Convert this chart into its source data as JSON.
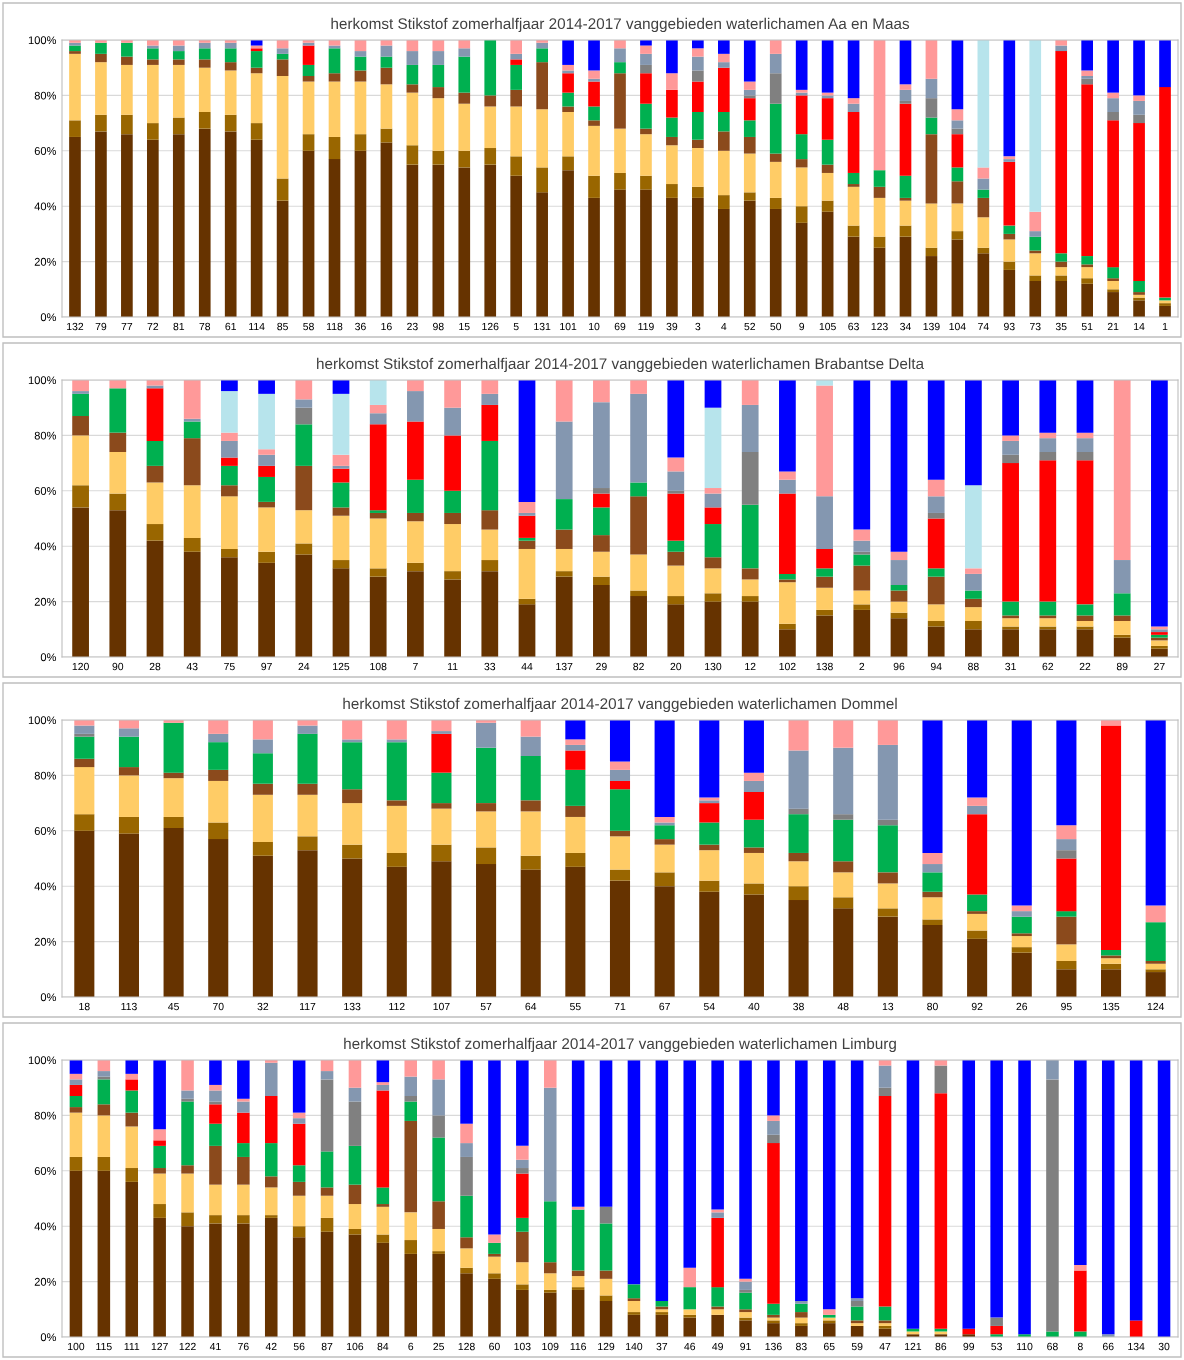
{
  "chart_data": [
    {
      "type": "bar",
      "stacked": true,
      "grid": "y",
      "title": "herkomst Stikstof zomerhalfjaar 2014-2017 vanggebieden waterlichamen Aa en Maas",
      "categories": [
        "132",
        "79",
        "77",
        "72",
        "81",
        "78",
        "61",
        "114",
        "85",
        "58",
        "118",
        "36",
        "16",
        "23",
        "98",
        "15",
        "126",
        "5",
        "131",
        "101",
        "10",
        "69",
        "119",
        "39",
        "3",
        "4",
        "52",
        "50",
        "9",
        "105",
        "63",
        "123",
        "34",
        "139",
        "104",
        "74",
        "93",
        "73",
        "35",
        "51",
        "21",
        "14",
        "1"
      ],
      "ylim": [
        0,
        100
      ],
      "yticks": [
        {
          "value": 0,
          "label": "0%"
        },
        {
          "value": 20,
          "label": "20%"
        },
        {
          "value": 40,
          "label": "40%"
        },
        {
          "value": 60,
          "label": "60%"
        },
        {
          "value": 80,
          "label": "80%"
        },
        {
          "value": 100,
          "label": "100%"
        }
      ],
      "series": [
        {
          "color": "#663300",
          "values": [
            65,
            67,
            66,
            64,
            66,
            68,
            67,
            64,
            42,
            60,
            57,
            60,
            63,
            55,
            55,
            54,
            55,
            51,
            45,
            53,
            43,
            46,
            46,
            43,
            43,
            39,
            42,
            39,
            34,
            38,
            29,
            25,
            29,
            22,
            28,
            23,
            17,
            13,
            13,
            12,
            9,
            6,
            4
          ]
        },
        {
          "color": "#996600",
          "values": [
            6,
            6,
            7,
            6,
            6,
            6,
            6,
            6,
            8,
            6,
            8,
            6,
            5,
            7,
            5,
            6,
            6,
            7,
            9,
            5,
            8,
            6,
            5,
            5,
            4,
            5,
            3,
            4,
            6,
            4,
            4,
            4,
            4,
            3,
            3,
            2,
            3,
            2,
            2,
            2,
            1,
            1,
            1
          ]
        },
        {
          "color": "#ffcc66",
          "values": [
            24,
            19,
            18,
            21,
            19,
            16,
            16,
            18,
            37,
            19,
            20,
            19,
            16,
            19,
            19,
            17,
            15,
            18,
            21,
            16,
            18,
            16,
            15,
            14,
            14,
            16,
            14,
            13,
            14,
            10,
            14,
            14,
            9,
            16,
            10,
            11,
            8,
            8,
            3,
            4,
            3,
            1,
            1
          ]
        },
        {
          "color": "#8b4a1c",
          "values": [
            1,
            3,
            3,
            2,
            2,
            3,
            3,
            2,
            6,
            2,
            3,
            4,
            6,
            3,
            4,
            4,
            4,
            6,
            17,
            2,
            2,
            20,
            2,
            3,
            3,
            7,
            6,
            3,
            3,
            3,
            1,
            4,
            1,
            25,
            8,
            7,
            2,
            1,
            2,
            1,
            1,
            1,
            0
          ]
        },
        {
          "color": "#00b050",
          "values": [
            2,
            4,
            5,
            4,
            3,
            4,
            5,
            6,
            2,
            4,
            9,
            5,
            4,
            7,
            8,
            13,
            20,
            9,
            5,
            5,
            5,
            4,
            9,
            7,
            10,
            7,
            6,
            18,
            9,
            9,
            4,
            6,
            8,
            6,
            5,
            3,
            3,
            5,
            3,
            3,
            4,
            4,
            1
          ]
        },
        {
          "color": "#ff0000",
          "values": [
            0,
            0,
            0,
            0,
            0,
            0,
            0,
            1,
            0,
            7,
            0,
            0,
            0,
            0,
            0,
            0,
            0,
            2,
            0,
            7,
            9,
            0,
            11,
            10,
            11,
            16,
            8,
            0,
            14,
            15,
            22,
            0,
            26,
            0,
            12,
            0,
            23,
            0,
            73,
            62,
            53,
            57,
            76
          ]
        },
        {
          "color": "#808080",
          "values": [
            0,
            0,
            0,
            0,
            0,
            0,
            0,
            0,
            0,
            0,
            0,
            0,
            0,
            0,
            0,
            0,
            0,
            0,
            0,
            0,
            0,
            0,
            3,
            0,
            4,
            0,
            1,
            11,
            0,
            0,
            0,
            0,
            1,
            7,
            2,
            0,
            0,
            0,
            0,
            2,
            3,
            3,
            0
          ]
        },
        {
          "color": "#8497b0",
          "values": [
            1,
            0,
            0,
            1,
            2,
            2,
            2,
            0,
            2,
            1,
            1,
            2,
            4,
            5,
            5,
            3,
            0,
            2,
            2,
            1,
            1,
            5,
            4,
            0,
            5,
            2,
            2,
            7,
            1,
            1,
            3,
            0,
            4,
            7,
            3,
            4,
            1,
            2,
            2,
            1,
            5,
            5,
            0
          ]
        },
        {
          "color": "#ff9999",
          "values": [
            1,
            1,
            1,
            2,
            2,
            1,
            1,
            1,
            3,
            1,
            2,
            4,
            2,
            4,
            4,
            3,
            0,
            5,
            1,
            2,
            3,
            3,
            3,
            6,
            3,
            3,
            3,
            5,
            1,
            1,
            2,
            47,
            2,
            14,
            4,
            4,
            1,
            7,
            2,
            2,
            2,
            2,
            0
          ]
        },
        {
          "color": "#b7e4ec",
          "values": [
            0,
            0,
            0,
            0,
            0,
            0,
            0,
            0,
            0,
            0,
            0,
            0,
            0,
            0,
            0,
            0,
            0,
            0,
            0,
            0,
            0,
            0,
            0,
            0,
            0,
            0,
            0,
            0,
            0,
            0,
            0,
            0,
            0,
            0,
            0,
            46,
            0,
            62,
            0,
            0,
            0,
            0,
            0
          ]
        },
        {
          "color": "#0000ff",
          "values": [
            0,
            0,
            0,
            0,
            0,
            0,
            0,
            2,
            0,
            0,
            0,
            0,
            0,
            0,
            0,
            0,
            0,
            0,
            0,
            9,
            11,
            0,
            2,
            12,
            3,
            5,
            15,
            0,
            18,
            19,
            21,
            0,
            16,
            0,
            25,
            0,
            42,
            0,
            0,
            11,
            19,
            20,
            17
          ]
        }
      ]
    },
    {
      "type": "bar",
      "stacked": true,
      "grid": "y",
      "title": "herkomst Stikstof zomerhalfjaar 2014-2017 vanggebieden waterlichamen Brabantse Delta",
      "categories": [
        "120",
        "90",
        "28",
        "43",
        "75",
        "97",
        "24",
        "125",
        "108",
        "7",
        "11",
        "33",
        "44",
        "137",
        "29",
        "82",
        "20",
        "130",
        "12",
        "102",
        "138",
        "2",
        "96",
        "94",
        "88",
        "31",
        "62",
        "22",
        "89",
        "27"
      ],
      "ylim": [
        0,
        100
      ],
      "yticks": [
        {
          "value": 0,
          "label": "0%"
        },
        {
          "value": 20,
          "label": "20%"
        },
        {
          "value": 40,
          "label": "40%"
        },
        {
          "value": 60,
          "label": "60%"
        },
        {
          "value": 80,
          "label": "80%"
        },
        {
          "value": 100,
          "label": "100%"
        }
      ],
      "series": [
        {
          "color": "#663300",
          "values": [
            54,
            53,
            42,
            38,
            36,
            34,
            37,
            32,
            29,
            31,
            28,
            31,
            19,
            29,
            26,
            22,
            19,
            20,
            20,
            10,
            15,
            17,
            14,
            11,
            10,
            10,
            10,
            10,
            7,
            3
          ]
        },
        {
          "color": "#996600",
          "values": [
            8,
            6,
            6,
            5,
            3,
            4,
            4,
            3,
            3,
            3,
            3,
            4,
            2,
            2,
            3,
            2,
            3,
            3,
            2,
            2,
            2,
            2,
            2,
            2,
            3,
            1,
            1,
            1,
            1,
            1
          ]
        },
        {
          "color": "#ffcc66",
          "values": [
            18,
            15,
            15,
            19,
            19,
            16,
            12,
            16,
            18,
            15,
            17,
            11,
            18,
            8,
            9,
            13,
            11,
            9,
            6,
            15,
            8,
            5,
            4,
            6,
            5,
            3,
            3,
            2,
            5,
            2
          ]
        },
        {
          "color": "#8b4a1c",
          "values": [
            7,
            7,
            6,
            17,
            4,
            2,
            16,
            3,
            2,
            3,
            4,
            7,
            3,
            7,
            6,
            21,
            5,
            4,
            4,
            1,
            4,
            9,
            4,
            10,
            3,
            1,
            1,
            2,
            2,
            1
          ]
        },
        {
          "color": "#00b050",
          "values": [
            8,
            16,
            9,
            6,
            7,
            9,
            15,
            9,
            1,
            12,
            8,
            25,
            1,
            11,
            10,
            5,
            4,
            12,
            23,
            2,
            3,
            4,
            2,
            3,
            3,
            5,
            5,
            4,
            8,
            1
          ]
        },
        {
          "color": "#ff0000",
          "values": [
            0,
            0,
            19,
            0,
            3,
            4,
            0,
            5,
            31,
            21,
            20,
            13,
            8,
            0,
            5,
            0,
            17,
            6,
            0,
            29,
            7,
            0,
            0,
            18,
            0,
            50,
            51,
            52,
            0,
            1
          ]
        },
        {
          "color": "#808080",
          "values": [
            0,
            0,
            0,
            0,
            0,
            0,
            6,
            0,
            0,
            0,
            0,
            0,
            0,
            0,
            2,
            0,
            1,
            0,
            19,
            0,
            0,
            1,
            0,
            2,
            0,
            3,
            3,
            3,
            0,
            0
          ]
        },
        {
          "color": "#8497b0",
          "values": [
            1,
            0,
            1,
            1,
            6,
            4,
            3,
            1,
            4,
            11,
            10,
            4,
            1,
            28,
            31,
            32,
            7,
            5,
            17,
            5,
            19,
            4,
            9,
            6,
            6,
            5,
            5,
            5,
            12,
            1
          ]
        },
        {
          "color": "#ff9999",
          "values": [
            4,
            3,
            2,
            14,
            3,
            2,
            7,
            4,
            3,
            4,
            10,
            5,
            4,
            15,
            8,
            5,
            5,
            2,
            9,
            3,
            40,
            4,
            3,
            6,
            2,
            2,
            2,
            2,
            65,
            1
          ]
        },
        {
          "color": "#b7e4ec",
          "values": [
            0,
            0,
            0,
            0,
            15,
            20,
            0,
            22,
            9,
            0,
            0,
            0,
            0,
            0,
            0,
            0,
            0,
            29,
            0,
            0,
            2,
            0,
            0,
            0,
            30,
            0,
            0,
            0,
            0,
            0
          ]
        },
        {
          "color": "#0000ff",
          "values": [
            0,
            0,
            0,
            0,
            4,
            5,
            0,
            5,
            0,
            0,
            0,
            0,
            44,
            0,
            0,
            0,
            28,
            10,
            0,
            33,
            0,
            54,
            62,
            36,
            38,
            20,
            19,
            19,
            0,
            89
          ]
        }
      ]
    },
    {
      "type": "bar",
      "stacked": true,
      "grid": "y",
      "title": "herkomst Stikstof zomerhalfjaar 2014-2017 vanggebieden waterlichamen Dommel",
      "categories": [
        "18",
        "113",
        "45",
        "70",
        "32",
        "117",
        "133",
        "112",
        "107",
        "57",
        "64",
        "55",
        "71",
        "67",
        "54",
        "40",
        "38",
        "48",
        "13",
        "80",
        "92",
        "26",
        "95",
        "135",
        "124"
      ],
      "ylim": [
        0,
        100
      ],
      "yticks": [
        {
          "value": 0,
          "label": "0%"
        },
        {
          "value": 20,
          "label": "20%"
        },
        {
          "value": 40,
          "label": "40%"
        },
        {
          "value": 60,
          "label": "60%"
        },
        {
          "value": 80,
          "label": "80%"
        },
        {
          "value": 100,
          "label": "100%"
        }
      ],
      "series": [
        {
          "color": "#663300",
          "values": [
            60,
            59,
            61,
            57,
            51,
            53,
            50,
            47,
            49,
            48,
            46,
            47,
            42,
            40,
            38,
            37,
            35,
            32,
            29,
            26,
            21,
            16,
            10,
            10,
            9
          ]
        },
        {
          "color": "#996600",
          "values": [
            6,
            6,
            4,
            6,
            5,
            5,
            5,
            5,
            6,
            6,
            5,
            5,
            4,
            5,
            4,
            4,
            5,
            4,
            3,
            2,
            3,
            2,
            3,
            2,
            1
          ]
        },
        {
          "color": "#ffcc66",
          "values": [
            17,
            15,
            14,
            15,
            17,
            15,
            15,
            17,
            13,
            13,
            16,
            13,
            12,
            10,
            11,
            11,
            9,
            9,
            9,
            8,
            6,
            4,
            6,
            2,
            2
          ]
        },
        {
          "color": "#8b4a1c",
          "values": [
            3,
            3,
            2,
            4,
            4,
            4,
            5,
            2,
            2,
            3,
            4,
            4,
            2,
            2,
            2,
            2,
            3,
            4,
            4,
            2,
            1,
            1,
            10,
            1,
            1
          ]
        },
        {
          "color": "#00b050",
          "values": [
            8,
            11,
            18,
            10,
            11,
            18,
            17,
            21,
            11,
            20,
            16,
            13,
            15,
            5,
            8,
            10,
            14,
            15,
            17,
            7,
            6,
            6,
            2,
            2,
            14
          ]
        },
        {
          "color": "#ff0000",
          "values": [
            0,
            0,
            0,
            0,
            0,
            0,
            0,
            0,
            14,
            0,
            0,
            7,
            3,
            0,
            7,
            10,
            0,
            0,
            0,
            0,
            29,
            0,
            19,
            81,
            0
          ]
        },
        {
          "color": "#808080",
          "values": [
            1,
            0,
            0,
            0,
            0,
            0,
            0,
            0,
            0,
            0,
            0,
            0,
            0,
            0,
            0,
            0,
            2,
            2,
            2,
            0,
            0,
            0,
            3,
            0,
            0
          ]
        },
        {
          "color": "#8497b0",
          "values": [
            3,
            3,
            0,
            3,
            5,
            3,
            1,
            1,
            1,
            9,
            7,
            2,
            4,
            1,
            1,
            4,
            21,
            24,
            27,
            3,
            3,
            2,
            4,
            0,
            0
          ]
        },
        {
          "color": "#ff9999",
          "values": [
            2,
            3,
            1,
            5,
            7,
            2,
            7,
            7,
            4,
            1,
            6,
            2,
            3,
            2,
            1,
            3,
            11,
            10,
            9,
            4,
            3,
            2,
            5,
            2,
            6
          ]
        },
        {
          "color": "#0000ff",
          "values": [
            0,
            0,
            0,
            0,
            0,
            0,
            0,
            0,
            0,
            0,
            0,
            7,
            15,
            35,
            28,
            19,
            0,
            0,
            0,
            48,
            28,
            67,
            38,
            0,
            67
          ]
        }
      ]
    },
    {
      "type": "bar",
      "stacked": true,
      "grid": "y",
      "title": "herkomst Stikstof zomerhalfjaar 2014-2017 vanggebieden waterlichamen Limburg",
      "categories": [
        "100",
        "115",
        "111",
        "127",
        "122",
        "41",
        "76",
        "42",
        "56",
        "87",
        "106",
        "84",
        "6",
        "25",
        "128",
        "60",
        "103",
        "109",
        "116",
        "129",
        "140",
        "37",
        "46",
        "49",
        "91",
        "136",
        "83",
        "65",
        "59",
        "47",
        "121",
        "86",
        "99",
        "53",
        "110",
        "68",
        "8",
        "66",
        "134",
        "30"
      ],
      "ylim": [
        0,
        100
      ],
      "yticks": [
        {
          "value": 0,
          "label": "0%"
        },
        {
          "value": 20,
          "label": "20%"
        },
        {
          "value": 40,
          "label": "40%"
        },
        {
          "value": 60,
          "label": "60%"
        },
        {
          "value": 80,
          "label": "80%"
        },
        {
          "value": 100,
          "label": "100%"
        }
      ],
      "series": [
        {
          "color": "#663300",
          "values": [
            60,
            60,
            56,
            43,
            40,
            41,
            41,
            43,
            36,
            38,
            37,
            34,
            30,
            30,
            23,
            21,
            17,
            16,
            17,
            13,
            8,
            8,
            7,
            8,
            6,
            5,
            4,
            5,
            4,
            3,
            1,
            1,
            1,
            0,
            0,
            0,
            0,
            0,
            0,
            0
          ]
        },
        {
          "color": "#996600",
          "values": [
            5,
            5,
            5,
            5,
            5,
            3,
            3,
            1,
            4,
            5,
            2,
            3,
            5,
            1,
            2,
            2,
            2,
            1,
            1,
            2,
            1,
            1,
            1,
            0,
            1,
            1,
            1,
            1,
            0,
            1,
            0,
            0,
            0,
            0,
            0,
            0,
            0,
            0,
            0,
            0
          ]
        },
        {
          "color": "#ffcc66",
          "values": [
            16,
            15,
            15,
            11,
            14,
            11,
            11,
            10,
            11,
            8,
            9,
            10,
            10,
            8,
            7,
            6,
            8,
            6,
            4,
            6,
            4,
            1,
            2,
            2,
            2,
            1,
            2,
            1,
            1,
            1,
            1,
            1,
            0,
            0,
            0,
            0,
            0,
            0,
            0,
            0
          ]
        },
        {
          "color": "#8b4a1c",
          "values": [
            2,
            4,
            5,
            2,
            3,
            14,
            10,
            4,
            5,
            3,
            7,
            1,
            33,
            10,
            4,
            1,
            11,
            4,
            2,
            3,
            1,
            1,
            0,
            1,
            1,
            1,
            2,
            0,
            1,
            1,
            0,
            0,
            0,
            0,
            0,
            0,
            0,
            0,
            0,
            0
          ]
        },
        {
          "color": "#00b050",
          "values": [
            4,
            9,
            8,
            8,
            23,
            8,
            5,
            12,
            6,
            13,
            14,
            6,
            7,
            23,
            15,
            4,
            5,
            22,
            22,
            17,
            5,
            2,
            8,
            7,
            6,
            4,
            3,
            1,
            5,
            5,
            1,
            1,
            0,
            1,
            1,
            2,
            2,
            0,
            0,
            0
          ]
        },
        {
          "color": "#ff0000",
          "values": [
            4,
            0,
            4,
            2,
            0,
            7,
            11,
            17,
            15,
            0,
            0,
            35,
            0,
            0,
            0,
            0,
            16,
            0,
            0,
            0,
            0,
            0,
            0,
            25,
            0,
            58,
            0,
            0,
            0,
            76,
            0,
            85,
            2,
            3,
            0,
            0,
            22,
            0,
            6,
            0
          ]
        },
        {
          "color": "#808080",
          "values": [
            0,
            1,
            0,
            0,
            1,
            1,
            0,
            0,
            0,
            26,
            16,
            0,
            2,
            8,
            14,
            0,
            2,
            0,
            0,
            6,
            0,
            0,
            0,
            0,
            1,
            3,
            0,
            0,
            2,
            3,
            0,
            10,
            0,
            3,
            0,
            91,
            0,
            0,
            0,
            0
          ]
        },
        {
          "color": "#8497b0",
          "values": [
            2,
            2,
            0,
            0,
            3,
            4,
            4,
            12,
            2,
            3,
            5,
            2,
            7,
            13,
            5,
            0,
            3,
            41,
            0,
            0,
            0,
            0,
            0,
            2,
            3,
            5,
            1,
            0,
            1,
            8,
            0,
            0,
            0,
            0,
            0,
            7,
            0,
            1,
            0,
            0
          ]
        },
        {
          "color": "#ff9999",
          "values": [
            2,
            4,
            2,
            4,
            11,
            2,
            1,
            1,
            2,
            4,
            10,
            1,
            6,
            7,
            7,
            3,
            5,
            10,
            1,
            0,
            0,
            0,
            7,
            1,
            1,
            2,
            0,
            2,
            0,
            2,
            0,
            2,
            0,
            0,
            0,
            0,
            2,
            0,
            0,
            0
          ]
        },
        {
          "color": "#0000ff",
          "values": [
            5,
            0,
            5,
            25,
            0,
            9,
            14,
            0,
            19,
            0,
            0,
            8,
            0,
            0,
            23,
            63,
            31,
            0,
            53,
            53,
            81,
            87,
            75,
            54,
            79,
            20,
            87,
            90,
            86,
            0,
            97,
            0,
            97,
            93,
            99,
            0,
            74,
            99,
            94,
            100
          ]
        }
      ]
    }
  ]
}
